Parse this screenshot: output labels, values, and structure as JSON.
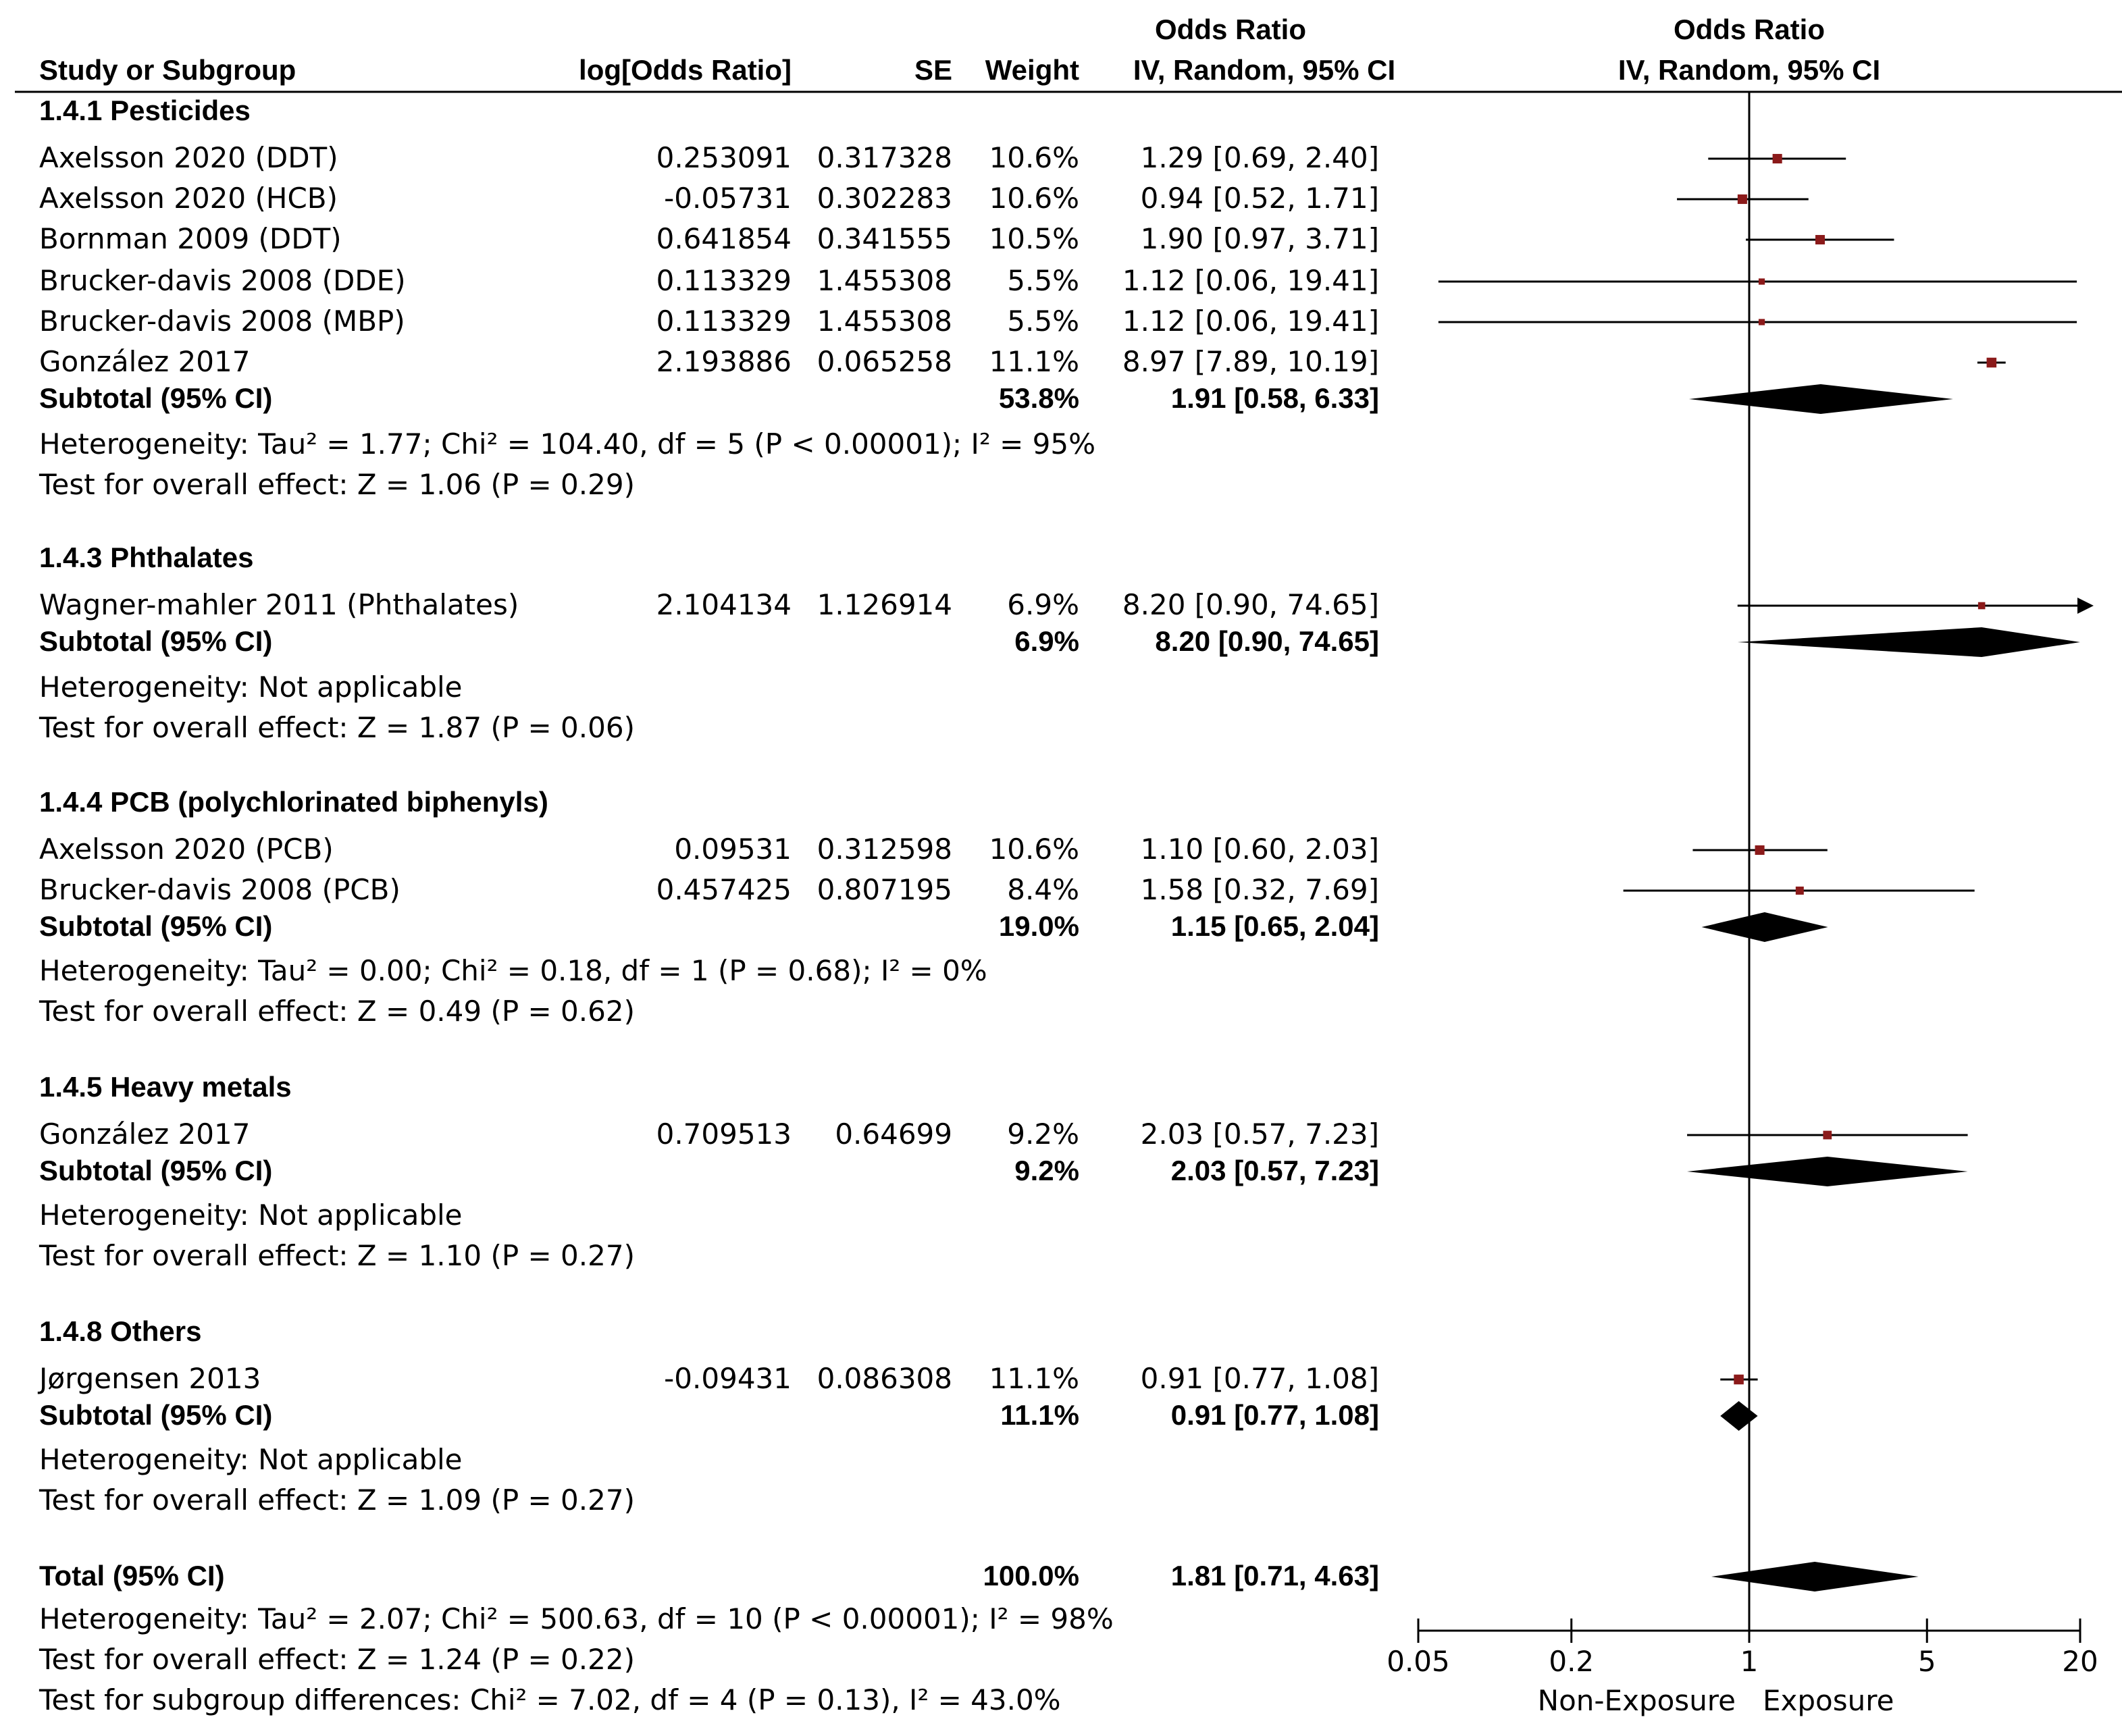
{
  "header": {
    "study_col": "Study or Subgroup",
    "logor_col": "log[Odds Ratio]",
    "se_col": "SE",
    "weight_col": "Weight",
    "or_col_top": "Odds Ratio",
    "or_col_bottom": "IV, Random, 95% CI",
    "plot_col_top": "Odds Ratio",
    "plot_col_bottom": "IV, Random, 95% CI"
  },
  "colors": {
    "square": "#8b1a1a",
    "ink": "#000000"
  },
  "subgroups": [
    {
      "title": "1.4.1 Pesticides",
      "studies": [
        {
          "name": "Axelsson 2020 (DDT)",
          "logor": "0.253091",
          "se": "0.317328",
          "weight": "10.6%",
          "ci": "1.29 [0.69, 2.40]",
          "or": 1.29,
          "lo": 0.69,
          "hi": 2.4,
          "w": 10.6
        },
        {
          "name": "Axelsson 2020 (HCB)",
          "logor": "-0.05731",
          "se": "0.302283",
          "weight": "10.6%",
          "ci": "0.94 [0.52, 1.71]",
          "or": 0.94,
          "lo": 0.52,
          "hi": 1.71,
          "w": 10.6
        },
        {
          "name": "Bornman 2009 (DDT)",
          "logor": "0.641854",
          "se": "0.341555",
          "weight": "10.5%",
          "ci": "1.90 [0.97, 3.71]",
          "or": 1.9,
          "lo": 0.97,
          "hi": 3.71,
          "w": 10.5
        },
        {
          "name": "Brucker-davis 2008 (DDE)",
          "logor": "0.113329",
          "se": "1.455308",
          "weight": "5.5%",
          "ci": "1.12 [0.06, 19.41]",
          "or": 1.12,
          "lo": 0.06,
          "hi": 19.41,
          "w": 5.5
        },
        {
          "name": "Brucker-davis 2008 (MBP)",
          "logor": "0.113329",
          "se": "1.455308",
          "weight": "5.5%",
          "ci": "1.12 [0.06, 19.41]",
          "or": 1.12,
          "lo": 0.06,
          "hi": 19.41,
          "w": 5.5
        },
        {
          "name": "González 2017",
          "logor": "2.193886",
          "se": "0.065258",
          "weight": "11.1%",
          "ci": "8.97 [7.89, 10.19]",
          "or": 8.97,
          "lo": 7.89,
          "hi": 10.19,
          "w": 11.1
        }
      ],
      "subtotal": {
        "label": "Subtotal (95% CI)",
        "weight": "53.8%",
        "ci": "1.91 [0.58, 6.33]",
        "or": 1.91,
        "lo": 0.58,
        "hi": 6.33
      },
      "notes": [
        "Heterogeneity: Tau² = 1.77; Chi² = 104.40, df = 5 (P < 0.00001); I² = 95%",
        "Test for overall effect: Z = 1.06 (P = 0.29)"
      ]
    },
    {
      "title": "1.4.3 Phthalates",
      "studies": [
        {
          "name": "Wagner-mahler 2011 (Phthalates)",
          "logor": "2.104134",
          "se": "1.126914",
          "weight": "6.9%",
          "ci": "8.20 [0.90, 74.65]",
          "or": 8.2,
          "lo": 0.9,
          "hi": 74.65,
          "w": 6.9
        }
      ],
      "subtotal": {
        "label": "Subtotal (95% CI)",
        "weight": "6.9%",
        "ci": "8.20 [0.90, 74.65]",
        "or": 8.2,
        "lo": 0.9,
        "hi": 74.65
      },
      "notes": [
        "Heterogeneity: Not applicable",
        "Test for overall effect: Z = 1.87 (P = 0.06)"
      ]
    },
    {
      "title": "1.4.4 PCB (polychlorinated biphenyls)",
      "studies": [
        {
          "name": "Axelsson 2020 (PCB)",
          "logor": "0.09531",
          "se": "0.312598",
          "weight": "10.6%",
          "ci": "1.10 [0.60, 2.03]",
          "or": 1.1,
          "lo": 0.6,
          "hi": 2.03,
          "w": 10.6
        },
        {
          "name": "Brucker-davis 2008 (PCB)",
          "logor": "0.457425",
          "se": "0.807195",
          "weight": "8.4%",
          "ci": "1.58 [0.32, 7.69]",
          "or": 1.58,
          "lo": 0.32,
          "hi": 7.69,
          "w": 8.4
        }
      ],
      "subtotal": {
        "label": "Subtotal (95% CI)",
        "weight": "19.0%",
        "ci": "1.15 [0.65, 2.04]",
        "or": 1.15,
        "lo": 0.65,
        "hi": 2.04
      },
      "notes": [
        "Heterogeneity: Tau² = 0.00; Chi² = 0.18, df = 1 (P = 0.68); I² = 0%",
        "Test for overall effect: Z = 0.49 (P = 0.62)"
      ]
    },
    {
      "title": "1.4.5 Heavy metals",
      "studies": [
        {
          "name": "González 2017",
          "logor": "0.709513",
          "se": "0.64699",
          "weight": "9.2%",
          "ci": "2.03 [0.57, 7.23]",
          "or": 2.03,
          "lo": 0.57,
          "hi": 7.23,
          "w": 9.2
        }
      ],
      "subtotal": {
        "label": "Subtotal (95% CI)",
        "weight": "9.2%",
        "ci": "2.03 [0.57, 7.23]",
        "or": 2.03,
        "lo": 0.57,
        "hi": 7.23
      },
      "notes": [
        "Heterogeneity: Not applicable",
        "Test for overall effect: Z = 1.10 (P = 0.27)"
      ]
    },
    {
      "title": "1.4.8 Others",
      "studies": [
        {
          "name": "Jørgensen 2013",
          "logor": "-0.09431",
          "se": "0.086308",
          "weight": "11.1%",
          "ci": "0.91 [0.77, 1.08]",
          "or": 0.91,
          "lo": 0.77,
          "hi": 1.08,
          "w": 11.1
        }
      ],
      "subtotal": {
        "label": "Subtotal (95% CI)",
        "weight": "11.1%",
        "ci": "0.91 [0.77, 1.08]",
        "or": 0.91,
        "lo": 0.77,
        "hi": 1.08
      },
      "notes": [
        "Heterogeneity: Not applicable",
        "Test for overall effect: Z = 1.09 (P = 0.27)"
      ]
    }
  ],
  "total": {
    "label": "Total (95% CI)",
    "weight": "100.0%",
    "ci": "1.81 [0.71, 4.63]",
    "or": 1.81,
    "lo": 0.71,
    "hi": 4.63,
    "notes": [
      "Heterogeneity: Tau² = 2.07; Chi² = 500.63, df = 10 (P < 0.00001); I² = 98%",
      "Test for overall effect: Z = 1.24 (P = 0.22)",
      "Test for subgroup differences: Chi² = 7.02, df = 4 (P = 0.13), I² = 43.0%"
    ]
  },
  "chart_data": {
    "type": "forest",
    "scale": "log",
    "xlim": [
      0.05,
      20
    ],
    "ticks": [
      0.05,
      0.2,
      1,
      5,
      20
    ],
    "tick_labels": [
      "0.05",
      "0.2",
      "1",
      "5",
      "20"
    ],
    "favours_left": "Non-Exposure",
    "favours_right": "Exposure",
    "null_value": 1
  }
}
